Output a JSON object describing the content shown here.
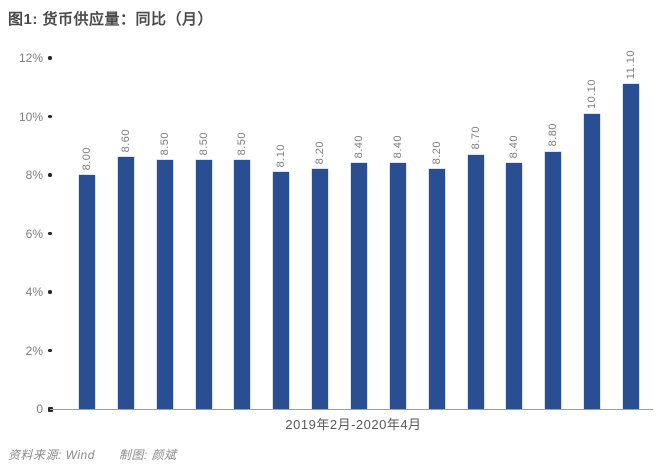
{
  "header": {
    "title": "图1: 货币供应量：同比（月）"
  },
  "footer": {
    "source": "资料来源: Wind",
    "credit": "制图: 颜斌"
  },
  "colors": {
    "bar": "#2a4e92",
    "axis_line": "#9e9e9e",
    "tick_dot": "#262626",
    "value_label": "#7f7f7f",
    "title": "#4a4a4a"
  },
  "chart_data": {
    "type": "bar",
    "title": "图1: 货币供应量：同比（月）",
    "xlabel": "2019年2月-2020年4月",
    "ylabel": "",
    "ylim": [
      0,
      12
    ],
    "grid": false,
    "legend": "none",
    "y_ticks": [
      {
        "label": "12%",
        "value": 12
      },
      {
        "label": "10%",
        "value": 10
      },
      {
        "label": "8%",
        "value": 8
      },
      {
        "label": "6%",
        "value": 6
      },
      {
        "label": "4%",
        "value": 4
      },
      {
        "label": "2%",
        "value": 2
      },
      {
        "label": "0",
        "value": 0
      }
    ],
    "values": [
      8.0,
      8.6,
      8.5,
      8.5,
      8.5,
      8.1,
      8.2,
      8.4,
      8.4,
      8.2,
      8.7,
      8.4,
      8.8,
      10.1,
      11.1
    ],
    "value_labels": [
      "8.00",
      "8.60",
      "8.50",
      "8.50",
      "8.50",
      "8.10",
      "8.20",
      "8.40",
      "8.40",
      "8.20",
      "8.70",
      "8.40",
      "8.80",
      "10.10",
      "11.10"
    ]
  }
}
